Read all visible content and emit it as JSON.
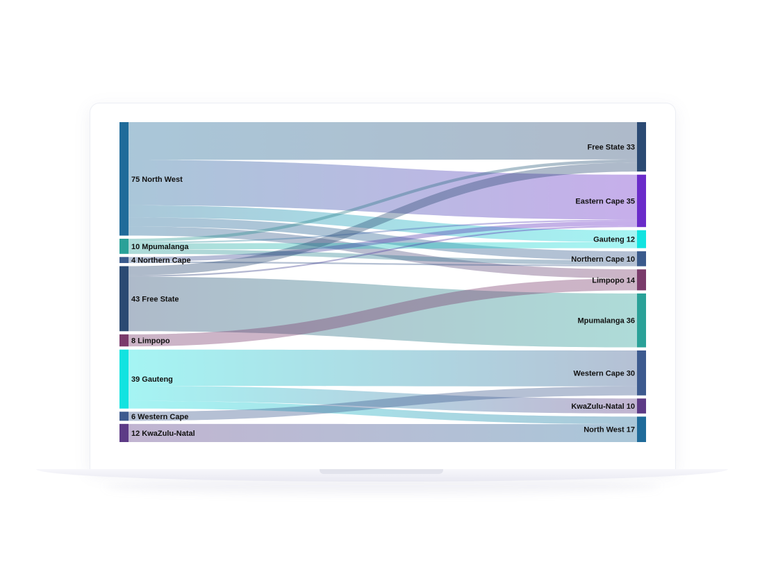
{
  "chart_data": {
    "type": "sankey",
    "sources": [
      {
        "id": "s_nw",
        "name": "North West",
        "value": 75,
        "color": "#1f6b9a",
        "label": "75 North West"
      },
      {
        "id": "s_mp",
        "name": "Mpumalanga",
        "value": 10,
        "color": "#2aa198",
        "label": "10 Mpumalanga"
      },
      {
        "id": "s_nc",
        "name": "Northern Cape",
        "value": 4,
        "color": "#3a5a8c",
        "label": "4 Northern Cape"
      },
      {
        "id": "s_fs",
        "name": "Free State",
        "value": 43,
        "color": "#2b4a73",
        "label": "43 Free State"
      },
      {
        "id": "s_lp",
        "name": "Limpopo",
        "value": 8,
        "color": "#7a3b6b",
        "label": "8 Limpopo"
      },
      {
        "id": "s_gt",
        "name": "Gauteng",
        "value": 39,
        "color": "#12e3e0",
        "label": "39 Gauteng"
      },
      {
        "id": "s_wc",
        "name": "Western Cape",
        "value": 6,
        "color": "#3d5a8f",
        "label": "6 Western Cape"
      },
      {
        "id": "s_kz",
        "name": "KwaZulu-Natal",
        "value": 12,
        "color": "#5d3b86",
        "label": "12 KwaZulu-Natal"
      }
    ],
    "targets": [
      {
        "id": "t_fs",
        "name": "Free State",
        "value": 33,
        "color": "#2b4a73",
        "label": "Free State 33"
      },
      {
        "id": "t_ec",
        "name": "Eastern Cape",
        "value": 35,
        "color": "#6a2bc9",
        "label": "Eastern Cape 35"
      },
      {
        "id": "t_gt",
        "name": "Gauteng",
        "value": 12,
        "color": "#12e3e0",
        "label": "Gauteng 12"
      },
      {
        "id": "t_nc",
        "name": "Northern Cape",
        "value": 10,
        "color": "#3a5a8c",
        "label": "Northern Cape 10"
      },
      {
        "id": "t_lp",
        "name": "Limpopo",
        "value": 14,
        "color": "#7a3b6b",
        "label": "Limpopo 14"
      },
      {
        "id": "t_mp",
        "name": "Mpumalanga",
        "value": 36,
        "color": "#2aa198",
        "label": "Mpumalanga 36"
      },
      {
        "id": "t_wc",
        "name": "Western Cape",
        "value": 30,
        "color": "#3d5a8f",
        "label": "Western Cape 30"
      },
      {
        "id": "t_kz",
        "name": "KwaZulu-Natal",
        "value": 10,
        "color": "#5d3b86",
        "label": "KwaZulu-Natal 10"
      },
      {
        "id": "t_nw",
        "name": "North West",
        "value": 17,
        "color": "#1f6b9a",
        "label": "North West 17"
      }
    ],
    "links": [
      {
        "source": "s_nw",
        "target": "t_fs",
        "value": 25
      },
      {
        "source": "s_nw",
        "target": "t_ec",
        "value": 30
      },
      {
        "source": "s_nw",
        "target": "t_gt",
        "value": 8
      },
      {
        "source": "s_nw",
        "target": "t_nc",
        "value": 6
      },
      {
        "source": "s_nw",
        "target": "t_lp",
        "value": 6
      },
      {
        "source": "s_mp",
        "target": "t_fs",
        "value": 2
      },
      {
        "source": "s_mp",
        "target": "t_ec",
        "value": 1
      },
      {
        "source": "s_mp",
        "target": "t_gt",
        "value": 4
      },
      {
        "source": "s_mp",
        "target": "t_nc",
        "value": 3
      },
      {
        "source": "s_nc",
        "target": "t_ec",
        "value": 3
      },
      {
        "source": "s_nc",
        "target": "t_nc",
        "value": 1
      },
      {
        "source": "s_fs",
        "target": "t_fs",
        "value": 6
      },
      {
        "source": "s_fs",
        "target": "t_ec",
        "value": 1
      },
      {
        "source": "s_fs",
        "target": "t_mp",
        "value": 36
      },
      {
        "source": "s_lp",
        "target": "t_lp",
        "value": 8
      },
      {
        "source": "s_gt",
        "target": "t_wc",
        "value": 24
      },
      {
        "source": "s_gt",
        "target": "t_kz",
        "value": 10
      },
      {
        "source": "s_gt",
        "target": "t_nw",
        "value": 5
      },
      {
        "source": "s_wc",
        "target": "t_wc",
        "value": 6
      },
      {
        "source": "s_kz",
        "target": "t_nw",
        "value": 12
      }
    ]
  }
}
